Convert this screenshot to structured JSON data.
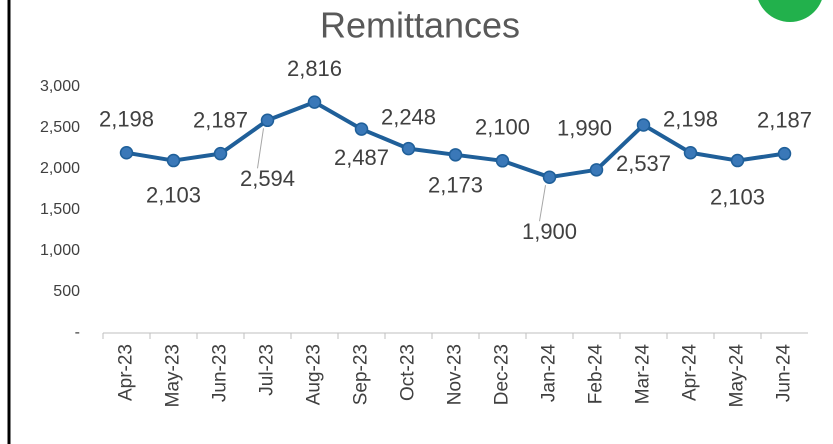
{
  "chart_data": {
    "type": "line",
    "title": "Remittances",
    "categories": [
      "Apr-23",
      "May-23",
      "Jun-23",
      "Jul-23",
      "Aug-23",
      "Sep-23",
      "Oct-23",
      "Nov-23",
      "Dec-23",
      "Jan-24",
      "Feb-24",
      "Mar-24",
      "Apr-24",
      "May-24",
      "Jun-24"
    ],
    "values": [
      2198,
      2103,
      2187,
      2594,
      2816,
      2487,
      2248,
      2173,
      2100,
      1900,
      1990,
      2537,
      2198,
      2103,
      2187
    ],
    "value_labels": [
      "2,198",
      "2,103",
      "2,187",
      "2,594",
      "2,816",
      "2,487",
      "2,248",
      "2,173",
      "2,100",
      "1,900",
      "1,990",
      "2,537",
      "2,198",
      "2,103",
      "2,187"
    ],
    "color": "#1f5f99",
    "ylim": [
      0,
      3000
    ],
    "yticks": [
      {
        "value": 0,
        "label": "-"
      },
      500,
      {
        "value": 1000,
        "label": "1,000"
      },
      {
        "value": 1500,
        "label": "1,500"
      },
      {
        "value": 2000,
        "label": "2,000"
      },
      {
        "value": 2500,
        "label": "2,500"
      },
      {
        "value": 3000,
        "label": "3,000"
      }
    ],
    "grid": false
  }
}
